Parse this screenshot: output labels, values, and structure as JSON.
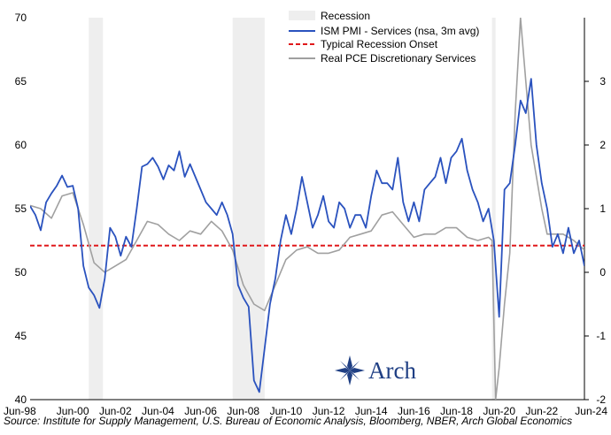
{
  "chart_data": {
    "type": "line",
    "title": "",
    "x_ticks": [
      "Jun-98",
      "Jun-00",
      "Jun-02",
      "Jun-04",
      "Jun-06",
      "Jun-08",
      "Jun-10",
      "Jun-12",
      "Jun-14",
      "Jun-16",
      "Jun-18",
      "Jun-20",
      "Jun-22",
      "Jun-24"
    ],
    "xlim": [
      "1998-06",
      "2024-06"
    ],
    "y_left": {
      "ticks": [
        "40",
        "45",
        "50",
        "55",
        "60",
        "65",
        "70"
      ],
      "lim": [
        40,
        70
      ]
    },
    "y_right": {
      "ticks": [
        "-2",
        "-1",
        "0",
        "1",
        "2",
        "3"
      ],
      "lim": [
        -2,
        4
      ]
    },
    "legend": [
      "Recession",
      "ISM PMI - Services (nsa, 3m avg)",
      "Typical Recession Onset",
      "Real PCE Discretionary Services"
    ],
    "legend_placement": "top-center",
    "recessions": [
      [
        "2001-03",
        "2001-11"
      ],
      [
        "2007-12",
        "2009-06"
      ],
      [
        "2020-02",
        "2020-04"
      ]
    ],
    "threshold": {
      "name": "Typical Recession Onset",
      "value": 52.1
    },
    "series": [
      {
        "name": "ISM PMI - Services (nsa, 3m avg)",
        "axis": "left",
        "color": "#2a52be",
        "points": [
          [
            "1998-06",
            55.2
          ],
          [
            "1998-09",
            54.5
          ],
          [
            "1998-12",
            53.3
          ],
          [
            "1999-03",
            55.5
          ],
          [
            "1999-06",
            56.2
          ],
          [
            "1999-09",
            56.8
          ],
          [
            "1999-12",
            57.6
          ],
          [
            "2000-03",
            56.7
          ],
          [
            "2000-06",
            56.8
          ],
          [
            "2000-09",
            55.0
          ],
          [
            "2000-12",
            50.5
          ],
          [
            "2001-03",
            48.8
          ],
          [
            "2001-06",
            48.2
          ],
          [
            "2001-09",
            47.2
          ],
          [
            "2001-12",
            49.5
          ],
          [
            "2002-03",
            53.5
          ],
          [
            "2002-06",
            52.8
          ],
          [
            "2002-09",
            51.3
          ],
          [
            "2002-12",
            52.8
          ],
          [
            "2003-03",
            52.0
          ],
          [
            "2003-06",
            55.0
          ],
          [
            "2003-09",
            58.3
          ],
          [
            "2003-12",
            58.5
          ],
          [
            "2004-03",
            59.0
          ],
          [
            "2004-06",
            58.3
          ],
          [
            "2004-09",
            57.3
          ],
          [
            "2004-12",
            58.4
          ],
          [
            "2005-03",
            58.0
          ],
          [
            "2005-06",
            59.5
          ],
          [
            "2005-09",
            57.5
          ],
          [
            "2005-12",
            58.5
          ],
          [
            "2006-03",
            57.5
          ],
          [
            "2006-06",
            56.5
          ],
          [
            "2006-09",
            55.5
          ],
          [
            "2006-12",
            55.0
          ],
          [
            "2007-03",
            54.5
          ],
          [
            "2007-06",
            55.5
          ],
          [
            "2007-09",
            54.5
          ],
          [
            "2007-12",
            53.0
          ],
          [
            "2008-03",
            49.0
          ],
          [
            "2008-06",
            48.0
          ],
          [
            "2008-09",
            47.3
          ],
          [
            "2008-12",
            41.5
          ],
          [
            "2009-03",
            40.6
          ],
          [
            "2009-06",
            44.0
          ],
          [
            "2009-09",
            47.5
          ],
          [
            "2009-12",
            49.5
          ],
          [
            "2010-03",
            52.5
          ],
          [
            "2010-06",
            54.5
          ],
          [
            "2010-09",
            53.0
          ],
          [
            "2010-12",
            55.0
          ],
          [
            "2011-03",
            57.5
          ],
          [
            "2011-06",
            55.5
          ],
          [
            "2011-09",
            53.5
          ],
          [
            "2011-12",
            54.5
          ],
          [
            "2012-03",
            56.0
          ],
          [
            "2012-06",
            54.0
          ],
          [
            "2012-09",
            53.5
          ],
          [
            "2012-12",
            55.5
          ],
          [
            "2013-03",
            55.0
          ],
          [
            "2013-06",
            53.5
          ],
          [
            "2013-09",
            54.5
          ],
          [
            "2013-12",
            54.5
          ],
          [
            "2014-03",
            53.5
          ],
          [
            "2014-06",
            56.0
          ],
          [
            "2014-09",
            58.0
          ],
          [
            "2014-12",
            57.0
          ],
          [
            "2015-03",
            57.0
          ],
          [
            "2015-06",
            56.5
          ],
          [
            "2015-09",
            59.0
          ],
          [
            "2015-12",
            55.5
          ],
          [
            "2016-03",
            54.0
          ],
          [
            "2016-06",
            55.5
          ],
          [
            "2016-09",
            54.0
          ],
          [
            "2016-12",
            56.5
          ],
          [
            "2017-03",
            57.0
          ],
          [
            "2017-06",
            57.5
          ],
          [
            "2017-09",
            59.0
          ],
          [
            "2017-12",
            57.0
          ],
          [
            "2018-03",
            59.0
          ],
          [
            "2018-06",
            59.5
          ],
          [
            "2018-09",
            60.5
          ],
          [
            "2018-12",
            58.0
          ],
          [
            "2019-03",
            56.5
          ],
          [
            "2019-06",
            55.5
          ],
          [
            "2019-09",
            54.0
          ],
          [
            "2019-12",
            55.0
          ],
          [
            "2020-03",
            52.5
          ],
          [
            "2020-06",
            46.5
          ],
          [
            "2020-09",
            56.5
          ],
          [
            "2020-12",
            57.0
          ],
          [
            "2021-03",
            60.0
          ],
          [
            "2021-06",
            63.5
          ],
          [
            "2021-09",
            62.5
          ],
          [
            "2021-12",
            65.2
          ],
          [
            "2022-03",
            60.0
          ],
          [
            "2022-06",
            57.0
          ],
          [
            "2022-09",
            55.0
          ],
          [
            "2022-12",
            52.0
          ],
          [
            "2023-03",
            53.0
          ],
          [
            "2023-06",
            51.5
          ],
          [
            "2023-09",
            53.5
          ],
          [
            "2023-12",
            51.5
          ],
          [
            "2024-03",
            52.5
          ],
          [
            "2024-06",
            50.5
          ]
        ]
      },
      {
        "name": "Real PCE Discretionary Services",
        "axis": "right",
        "color": "#a0a0a0",
        "points": [
          [
            "1998-06",
            1.05
          ],
          [
            "1998-12",
            1.0
          ],
          [
            "1999-06",
            0.85
          ],
          [
            "1999-12",
            1.2
          ],
          [
            "2000-06",
            1.25
          ],
          [
            "2000-12",
            0.75
          ],
          [
            "2001-06",
            0.15
          ],
          [
            "2001-12",
            0.0
          ],
          [
            "2002-06",
            0.1
          ],
          [
            "2002-12",
            0.2
          ],
          [
            "2003-06",
            0.5
          ],
          [
            "2003-12",
            0.8
          ],
          [
            "2004-06",
            0.75
          ],
          [
            "2004-12",
            0.6
          ],
          [
            "2005-06",
            0.5
          ],
          [
            "2005-12",
            0.65
          ],
          [
            "2006-06",
            0.6
          ],
          [
            "2006-12",
            0.8
          ],
          [
            "2007-06",
            0.65
          ],
          [
            "2007-12",
            0.35
          ],
          [
            "2008-06",
            -0.2
          ],
          [
            "2008-12",
            -0.5
          ],
          [
            "2009-06",
            -0.6
          ],
          [
            "2009-12",
            -0.2
          ],
          [
            "2010-06",
            0.2
          ],
          [
            "2010-12",
            0.35
          ],
          [
            "2011-06",
            0.4
          ],
          [
            "2011-12",
            0.3
          ],
          [
            "2012-06",
            0.3
          ],
          [
            "2012-12",
            0.35
          ],
          [
            "2013-06",
            0.55
          ],
          [
            "2013-12",
            0.6
          ],
          [
            "2014-06",
            0.65
          ],
          [
            "2014-12",
            0.9
          ],
          [
            "2015-06",
            0.95
          ],
          [
            "2015-12",
            0.75
          ],
          [
            "2016-06",
            0.55
          ],
          [
            "2016-12",
            0.6
          ],
          [
            "2017-06",
            0.6
          ],
          [
            "2017-12",
            0.7
          ],
          [
            "2018-06",
            0.7
          ],
          [
            "2018-12",
            0.55
          ],
          [
            "2019-06",
            0.5
          ],
          [
            "2019-12",
            0.55
          ],
          [
            "2020-02",
            0.5
          ],
          [
            "2020-04",
            -2.0
          ],
          [
            "2020-06",
            -1.5
          ],
          [
            "2020-09",
            -0.5
          ],
          [
            "2020-12",
            0.3
          ],
          [
            "2021-03",
            2.5
          ],
          [
            "2021-06",
            4.0
          ],
          [
            "2021-09",
            3.0
          ],
          [
            "2021-12",
            2.0
          ],
          [
            "2022-03",
            1.5
          ],
          [
            "2022-06",
            1.0
          ],
          [
            "2022-09",
            0.6
          ],
          [
            "2022-12",
            0.6
          ],
          [
            "2023-06",
            0.6
          ],
          [
            "2023-12",
            0.5
          ],
          [
            "2024-06",
            0.35
          ]
        ]
      }
    ],
    "source": "Source: Institute for Supply Management, U.S. Bureau of Economic Analysis, Bloomberg, NBER, Arch Global Economics",
    "logo_text": "Arch"
  }
}
